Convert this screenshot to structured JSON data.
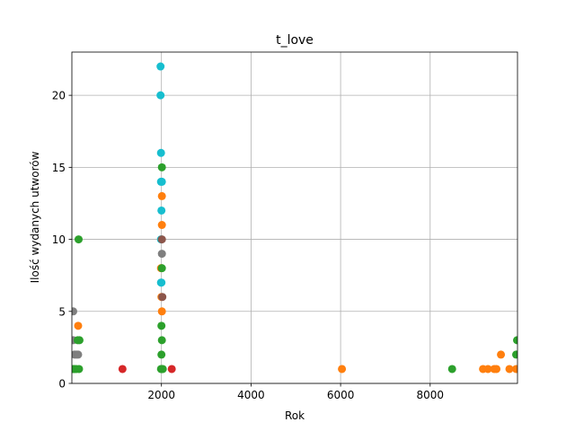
{
  "chart_data": {
    "type": "scatter",
    "title": "t_love",
    "xlabel": "Rok",
    "ylabel": "Ilość wydanych utworów",
    "xlim": [
      0,
      9950
    ],
    "ylim": [
      0,
      23
    ],
    "xticks": [
      2000,
      4000,
      6000,
      8000
    ],
    "yticks": [
      0,
      5,
      10,
      15,
      20
    ],
    "grid": true,
    "colors": {
      "blue": "#1f77b4",
      "orange": "#ff7f0e",
      "green": "#2ca02c",
      "red": "#d62728",
      "purple": "#9467bd",
      "brown": "#8c564b",
      "pink": "#e377c2",
      "gray": "#7f7f7f",
      "olive": "#bcbd22",
      "cyan": "#17becf"
    },
    "points": [
      {
        "x": 30,
        "y": 1,
        "c": "green"
      },
      {
        "x": 60,
        "y": 1,
        "c": "green"
      },
      {
        "x": 100,
        "y": 1,
        "c": "green"
      },
      {
        "x": 160,
        "y": 1,
        "c": "green"
      },
      {
        "x": 60,
        "y": 2,
        "c": "gray"
      },
      {
        "x": 100,
        "y": 2,
        "c": "gray"
      },
      {
        "x": 140,
        "y": 2,
        "c": "gray"
      },
      {
        "x": 30,
        "y": 3,
        "c": "gray"
      },
      {
        "x": 130,
        "y": 3,
        "c": "green"
      },
      {
        "x": 170,
        "y": 3,
        "c": "green"
      },
      {
        "x": 140,
        "y": 4,
        "c": "orange"
      },
      {
        "x": 30,
        "y": 5,
        "c": "gray"
      },
      {
        "x": 150,
        "y": 10,
        "c": "green"
      },
      {
        "x": 1130,
        "y": 1,
        "c": "red"
      },
      {
        "x": 1990,
        "y": 1,
        "c": "green"
      },
      {
        "x": 2010,
        "y": 1,
        "c": "green"
      },
      {
        "x": 2030,
        "y": 1,
        "c": "green"
      },
      {
        "x": 2230,
        "y": 1,
        "c": "red"
      },
      {
        "x": 2000,
        "y": 2,
        "c": "green"
      },
      {
        "x": 2010,
        "y": 3,
        "c": "green"
      },
      {
        "x": 2000,
        "y": 4,
        "c": "green"
      },
      {
        "x": 2010,
        "y": 5,
        "c": "orange"
      },
      {
        "x": 2000,
        "y": 6,
        "c": "orange"
      },
      {
        "x": 2020,
        "y": 6,
        "c": "brown"
      },
      {
        "x": 1990,
        "y": 7,
        "c": "cyan"
      },
      {
        "x": 2000,
        "y": 7,
        "c": "cyan"
      },
      {
        "x": 1990,
        "y": 8,
        "c": "orange"
      },
      {
        "x": 2010,
        "y": 8,
        "c": "green"
      },
      {
        "x": 2010,
        "y": 9,
        "c": "gray"
      },
      {
        "x": 1990,
        "y": 10,
        "c": "cyan"
      },
      {
        "x": 2010,
        "y": 10,
        "c": "brown"
      },
      {
        "x": 2010,
        "y": 11,
        "c": "orange"
      },
      {
        "x": 2000,
        "y": 12,
        "c": "cyan"
      },
      {
        "x": 2010,
        "y": 13,
        "c": "orange"
      },
      {
        "x": 1990,
        "y": 14,
        "c": "cyan"
      },
      {
        "x": 2010,
        "y": 14,
        "c": "cyan"
      },
      {
        "x": 2010,
        "y": 15,
        "c": "green"
      },
      {
        "x": 1990,
        "y": 16,
        "c": "cyan"
      },
      {
        "x": 1980,
        "y": 20,
        "c": "cyan"
      },
      {
        "x": 1980,
        "y": 22,
        "c": "cyan"
      },
      {
        "x": 6030,
        "y": 1,
        "c": "orange"
      },
      {
        "x": 8490,
        "y": 1,
        "c": "green"
      },
      {
        "x": 9180,
        "y": 1,
        "c": "orange"
      },
      {
        "x": 9290,
        "y": 1,
        "c": "orange"
      },
      {
        "x": 9430,
        "y": 1,
        "c": "orange"
      },
      {
        "x": 9480,
        "y": 1,
        "c": "orange"
      },
      {
        "x": 9770,
        "y": 1,
        "c": "orange"
      },
      {
        "x": 9920,
        "y": 1,
        "c": "orange"
      },
      {
        "x": 9580,
        "y": 2,
        "c": "orange"
      },
      {
        "x": 9920,
        "y": 2,
        "c": "green"
      },
      {
        "x": 9940,
        "y": 3,
        "c": "green"
      }
    ]
  }
}
